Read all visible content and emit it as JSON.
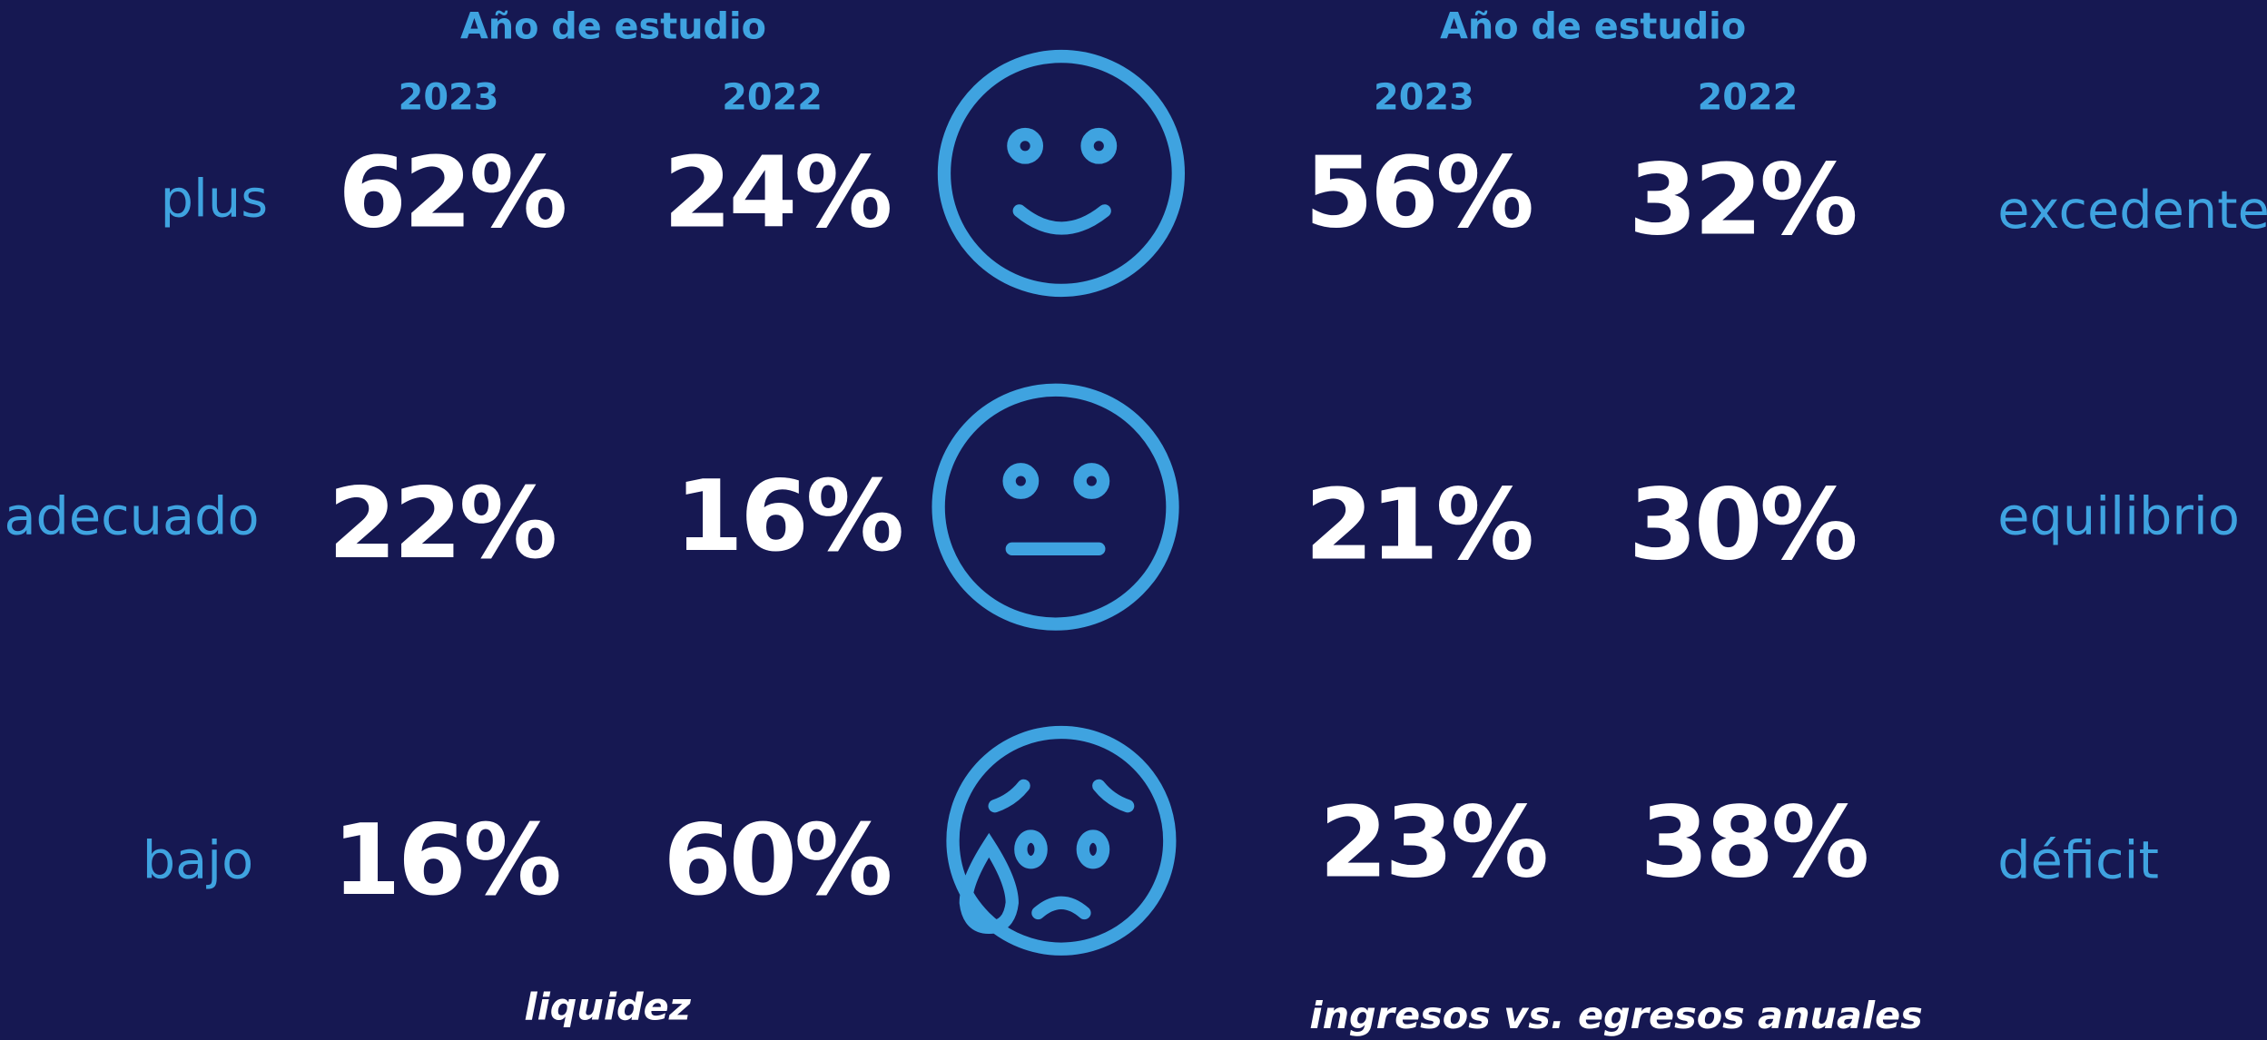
{
  "left_panel": {
    "header": "Año de estudio",
    "years": [
      "2023",
      "2022"
    ],
    "rows": [
      {
        "label": "plus",
        "values": [
          "62%",
          "24%"
        ]
      },
      {
        "label": "adecuado",
        "values": [
          "22%",
          "16%"
        ]
      },
      {
        "label": "bajo",
        "values": [
          "16%",
          "60%"
        ]
      }
    ],
    "footer": "liquidez"
  },
  "right_panel": {
    "header": "Año de estudio",
    "years": [
      "2023",
      "2022"
    ],
    "rows": [
      {
        "label": "excedente",
        "values": [
          "56%",
          "32%"
        ]
      },
      {
        "label": "equilibrio",
        "values": [
          "21%",
          "30%"
        ]
      },
      {
        "label": "déficit",
        "values": [
          "23%",
          "38%"
        ]
      }
    ],
    "footer": "ingresos vs. egresos anuales"
  }
}
